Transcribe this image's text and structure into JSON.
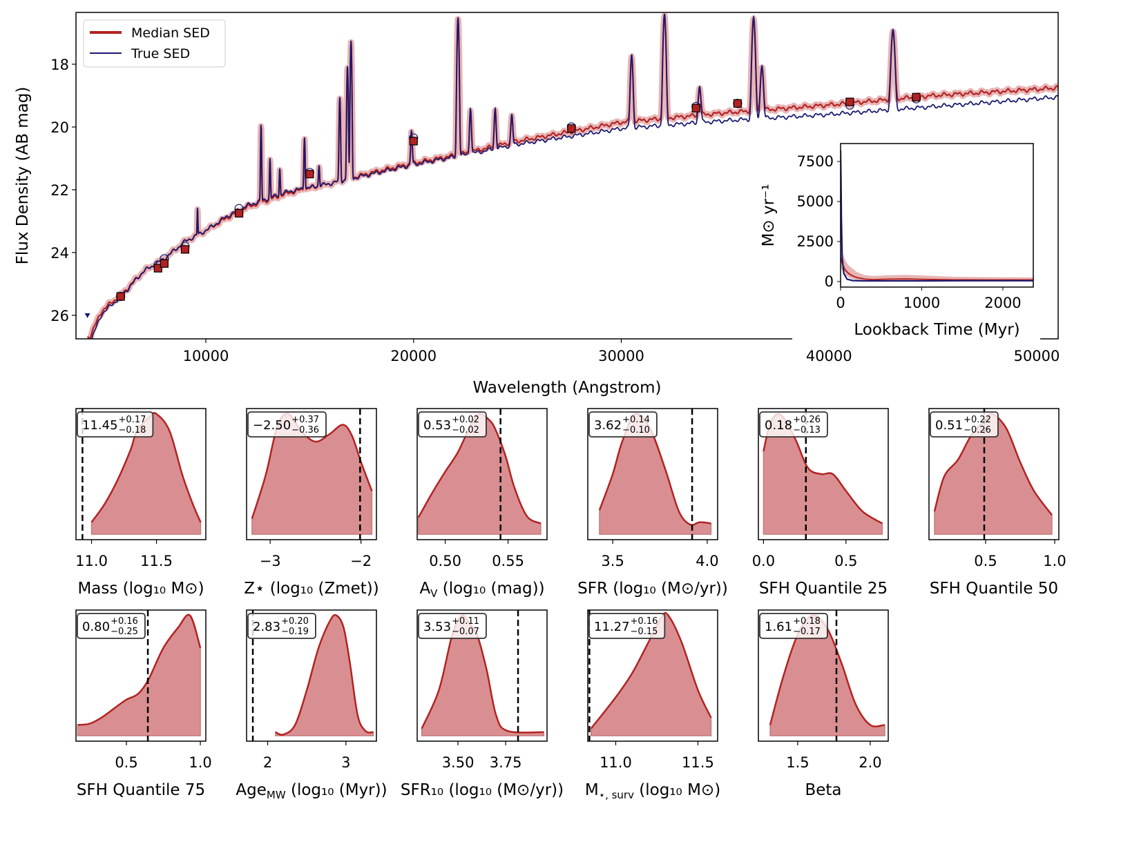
{
  "colors": {
    "median": "#b22222",
    "band": "#cd5c5c",
    "fill": "#d98f91",
    "true": "#191970",
    "truth_line": "#000000"
  },
  "chart_data": [
    {
      "type": "line",
      "xlabel": "Wavelength (Angstrom)",
      "ylabel": "Flux Density (AB mag)",
      "xlim": [
        3749,
        51031
      ],
      "ylim": [
        26.75,
        16.35
      ],
      "y_inverted": true,
      "xticks": [
        10000,
        20000,
        30000,
        40000,
        50000
      ],
      "xtick_labels": [
        "10000",
        "20000",
        "30000",
        "40000",
        "50000"
      ],
      "yticks": [
        18,
        20,
        22,
        24,
        26
      ],
      "ytick_labels": [
        "18",
        "20",
        "22",
        "24",
        "26"
      ],
      "legend": {
        "position": "upper-left",
        "entries": [
          "Median SED",
          "True SED"
        ]
      },
      "series": [
        {
          "name": "Median SED",
          "continuum": [
            [
              4400,
              26.7
            ],
            [
              5000,
              25.85
            ],
            [
              6000,
              25.3
            ],
            [
              7000,
              24.6
            ],
            [
              8000,
              24.2
            ],
            [
              9000,
              23.65
            ],
            [
              10000,
              23.3
            ],
            [
              11000,
              22.9
            ],
            [
              12000,
              22.55
            ],
            [
              14000,
              22.1
            ],
            [
              16000,
              21.8
            ],
            [
              18000,
              21.45
            ],
            [
              20000,
              21.15
            ],
            [
              22000,
              20.9
            ],
            [
              25000,
              20.45
            ],
            [
              28000,
              20.1
            ],
            [
              30000,
              19.85
            ],
            [
              35000,
              19.55
            ],
            [
              40000,
              19.3
            ],
            [
              45000,
              19.0
            ],
            [
              50000,
              18.8
            ],
            [
              51031,
              18.75
            ]
          ]
        },
        {
          "name": "True SED",
          "continuum": [
            [
              4400,
              26.9
            ],
            [
              5000,
              25.95
            ],
            [
              6000,
              25.35
            ],
            [
              7000,
              24.6
            ],
            [
              8000,
              24.2
            ],
            [
              9000,
              23.65
            ],
            [
              10000,
              23.3
            ],
            [
              11000,
              22.85
            ],
            [
              12000,
              22.5
            ],
            [
              14000,
              22.05
            ],
            [
              16000,
              21.8
            ],
            [
              18000,
              21.5
            ],
            [
              20000,
              21.2
            ],
            [
              22000,
              20.95
            ],
            [
              25000,
              20.55
            ],
            [
              28000,
              20.25
            ],
            [
              30000,
              20.05
            ],
            [
              35000,
              19.8
            ],
            [
              40000,
              19.6
            ],
            [
              45000,
              19.35
            ],
            [
              50000,
              19.1
            ],
            [
              51031,
              19.05
            ]
          ]
        }
      ],
      "emission_lines": [
        [
          9600,
          22.55
        ],
        [
          12660,
          19.9
        ],
        [
          13090,
          21.0
        ],
        [
          13560,
          21.3
        ],
        [
          14750,
          20.3
        ],
        [
          15450,
          21.2
        ],
        [
          16450,
          19.05
        ],
        [
          16820,
          18.05
        ],
        [
          16990,
          17.25
        ],
        [
          19900,
          20.1
        ],
        [
          22140,
          16.5
        ],
        [
          22740,
          19.4
        ],
        [
          23930,
          19.4
        ],
        [
          24730,
          19.6
        ],
        [
          30500,
          17.7
        ],
        [
          32080,
          16.4
        ],
        [
          33770,
          18.7
        ],
        [
          36370,
          16.5
        ],
        [
          36770,
          18.05
        ],
        [
          43080,
          16.9
        ]
      ],
      "model_photometry": [
        [
          5900,
          25.4
        ],
        [
          7700,
          24.5
        ],
        [
          8000,
          24.35
        ],
        [
          9000,
          23.9
        ],
        [
          11600,
          22.75
        ],
        [
          15000,
          21.5
        ],
        [
          20000,
          20.45
        ],
        [
          27600,
          20.05
        ],
        [
          33600,
          19.4
        ],
        [
          35600,
          19.25
        ],
        [
          41000,
          19.2
        ],
        [
          44200,
          19.05
        ]
      ],
      "observed_photometry": [
        [
          5900,
          25.4
        ],
        [
          7700,
          24.4
        ],
        [
          8000,
          24.2
        ],
        [
          9000,
          23.8
        ],
        [
          11600,
          22.6
        ],
        [
          15000,
          21.45
        ],
        [
          20000,
          20.35
        ],
        [
          27600,
          20.0
        ],
        [
          33600,
          19.35
        ],
        [
          35600,
          19.25
        ],
        [
          41000,
          19.3
        ],
        [
          44200,
          19.1
        ]
      ],
      "upper_limits": [
        [
          4300,
          26.0
        ]
      ]
    },
    {
      "type": "line",
      "xlabel": "Lookback Time (Myr)",
      "ylabel": "M⊙ yr⁻¹",
      "xlim": [
        0,
        2375
      ],
      "ylim": [
        -345,
        8620
      ],
      "xticks": [
        0,
        1000,
        2000
      ],
      "xtick_labels": [
        "0",
        "1000",
        "2000"
      ],
      "yticks": [
        0,
        2500,
        5000,
        7500
      ],
      "ytick_labels": [
        "0",
        "2500",
        "5000",
        "7500"
      ],
      "series": [
        {
          "name": "Median",
          "x": [
            0,
            10,
            30,
            60,
            100,
            150,
            200,
            300,
            400,
            600,
            800,
            1000,
            1400,
            1800,
            2375
          ],
          "y": [
            1500,
            1300,
            1000,
            700,
            500,
            350,
            250,
            150,
            120,
            150,
            160,
            140,
            110,
            100,
            100
          ],
          "band_low": [
            900,
            800,
            600,
            400,
            250,
            150,
            100,
            50,
            30,
            40,
            40,
            30,
            20,
            20,
            20
          ],
          "band_high": [
            2200,
            2000,
            1700,
            1300,
            1000,
            800,
            600,
            400,
            350,
            400,
            420,
            380,
            300,
            280,
            260
          ]
        },
        {
          "name": "True",
          "x": [
            0,
            5,
            10,
            20,
            40,
            80,
            150,
            300,
            600,
            1000,
            1500,
            2000,
            2375
          ],
          "y": [
            8200,
            6500,
            4000,
            1500,
            500,
            150,
            60,
            40,
            40,
            40,
            50,
            50,
            50
          ]
        }
      ]
    },
    {
      "type": "area",
      "label": "Mass (log₁₀ M⊙)",
      "label_sub": "",
      "label_tail": "",
      "value": "11.45",
      "plus": "+0.17",
      "minus": "−0.18",
      "xlim": [
        10.88,
        11.88
      ],
      "xticks": [
        11.0,
        11.5
      ],
      "xtick_labels": [
        "11.0",
        "11.5"
      ],
      "truth": 10.93,
      "kde": [
        [
          11.0,
          0.1
        ],
        [
          11.1,
          0.25
        ],
        [
          11.2,
          0.45
        ],
        [
          11.3,
          0.7
        ],
        [
          11.35,
          0.86
        ],
        [
          11.45,
          0.98
        ],
        [
          11.5,
          1.0
        ],
        [
          11.6,
          0.86
        ],
        [
          11.7,
          0.49
        ],
        [
          11.78,
          0.25
        ],
        [
          11.84,
          0.1
        ]
      ]
    },
    {
      "type": "area",
      "label": "Z⋆ (log₁₀ (Zmet))",
      "label_sub": "",
      "label_tail": "",
      "value": "−2.50",
      "plus": "+0.37",
      "minus": "−0.36",
      "xlim": [
        -3.26,
        -1.83
      ],
      "xticks": [
        -3,
        -2
      ],
      "xtick_labels": [
        "−3",
        "−2"
      ],
      "truth": -2.01,
      "kde": [
        [
          -3.2,
          0.13
        ],
        [
          -3.05,
          0.49
        ],
        [
          -2.92,
          0.9
        ],
        [
          -2.8,
          1.0
        ],
        [
          -2.65,
          0.85
        ],
        [
          -2.5,
          0.77
        ],
        [
          -2.35,
          0.83
        ],
        [
          -2.2,
          0.91
        ],
        [
          -2.1,
          0.82
        ],
        [
          -2.0,
          0.6
        ],
        [
          -1.88,
          0.36
        ]
      ]
    },
    {
      "type": "area",
      "label": "A",
      "label_sub": "V",
      "label_tail": " (log₁₀ (mag))",
      "value": "0.53",
      "plus": "+0.02",
      "minus": "−0.02",
      "xlim": [
        0.4777,
        0.581
      ],
      "xticks": [
        0.5,
        0.55
      ],
      "xtick_labels": [
        "0.50",
        "0.55"
      ],
      "truth": 0.544,
      "kde": [
        [
          0.4787,
          0.14
        ],
        [
          0.49,
          0.35
        ],
        [
          0.5,
          0.52
        ],
        [
          0.51,
          0.68
        ],
        [
          0.52,
          0.9
        ],
        [
          0.527,
          1.0
        ],
        [
          0.535,
          0.95
        ],
        [
          0.54,
          0.87
        ],
        [
          0.548,
          0.65
        ],
        [
          0.555,
          0.39
        ],
        [
          0.565,
          0.15
        ],
        [
          0.576,
          0.09
        ]
      ]
    },
    {
      "type": "area",
      "label": "SFR (log₁₀ (M⊙/yr))",
      "label_sub": "",
      "label_tail": "",
      "value": "3.62",
      "plus": "+0.14",
      "minus": "−0.10",
      "xlim": [
        3.368,
        4.055
      ],
      "xticks": [
        3.5,
        4.0
      ],
      "xtick_labels": [
        "3.5",
        "4.0"
      ],
      "truth": 3.92,
      "kde": [
        [
          3.43,
          0.2
        ],
        [
          3.5,
          0.5
        ],
        [
          3.55,
          0.77
        ],
        [
          3.62,
          1.0
        ],
        [
          3.7,
          0.87
        ],
        [
          3.78,
          0.53
        ],
        [
          3.85,
          0.19
        ],
        [
          3.91,
          0.08
        ],
        [
          3.96,
          0.1
        ],
        [
          4.02,
          0.09
        ]
      ]
    },
    {
      "type": "area",
      "label": "SFH Quantile 25",
      "label_sub": "",
      "label_tail": "",
      "value": "0.18",
      "plus": "+0.26",
      "minus": "−0.13",
      "xlim": [
        -0.031,
        0.756
      ],
      "xticks": [
        0.0,
        0.5
      ],
      "xtick_labels": [
        "0.0",
        "0.5"
      ],
      "truth": 0.257,
      "kde": [
        [
          0.0,
          0.69
        ],
        [
          0.04,
          0.92
        ],
        [
          0.09,
          1.0
        ],
        [
          0.14,
          0.93
        ],
        [
          0.2,
          0.77
        ],
        [
          0.27,
          0.55
        ],
        [
          0.35,
          0.5
        ],
        [
          0.42,
          0.5
        ],
        [
          0.5,
          0.36
        ],
        [
          0.6,
          0.19
        ],
        [
          0.72,
          0.09
        ]
      ]
    },
    {
      "type": "area",
      "label": "SFH Quantile 50",
      "label_sub": "",
      "label_tail": "",
      "value": "0.51",
      "plus": "+0.22",
      "minus": "−0.26",
      "xlim": [
        0.09,
        1.03
      ],
      "xticks": [
        0.5,
        1.0
      ],
      "xtick_labels": [
        "0.5",
        "1.0"
      ],
      "truth": 0.49,
      "kde": [
        [
          0.13,
          0.19
        ],
        [
          0.2,
          0.48
        ],
        [
          0.3,
          0.62
        ],
        [
          0.4,
          0.83
        ],
        [
          0.5,
          0.95
        ],
        [
          0.55,
          1.0
        ],
        [
          0.65,
          0.88
        ],
        [
          0.75,
          0.6
        ],
        [
          0.85,
          0.36
        ],
        [
          0.98,
          0.16
        ]
      ]
    },
    {
      "type": "area",
      "label": "SFH Quantile 75",
      "label_sub": "",
      "label_tail": "",
      "value": "0.80",
      "plus": "+0.16",
      "minus": "−0.25",
      "xlim": [
        0.159,
        1.037
      ],
      "xticks": [
        0.5,
        1.0
      ],
      "xtick_labels": [
        "0.5",
        "1.0"
      ],
      "truth": 0.645,
      "kde": [
        [
          0.17,
          0.09
        ],
        [
          0.25,
          0.1
        ],
        [
          0.33,
          0.15
        ],
        [
          0.42,
          0.23
        ],
        [
          0.5,
          0.3
        ],
        [
          0.58,
          0.35
        ],
        [
          0.65,
          0.47
        ],
        [
          0.75,
          0.73
        ],
        [
          0.85,
          0.9
        ],
        [
          0.93,
          1.0
        ],
        [
          1.0,
          0.73
        ]
      ]
    },
    {
      "type": "area",
      "label": "Age",
      "label_sub": "MW",
      "label_tail": " (log₁₀ (Myr))",
      "value": "2.83",
      "plus": "+0.20",
      "minus": "−0.19",
      "xlim": [
        1.73,
        3.39
      ],
      "xticks": [
        2,
        3
      ],
      "xtick_labels": [
        "2",
        "3"
      ],
      "truth": 1.81,
      "kde": [
        [
          2.1,
          0.03
        ],
        [
          2.2,
          0.01
        ],
        [
          2.35,
          0.09
        ],
        [
          2.5,
          0.38
        ],
        [
          2.65,
          0.73
        ],
        [
          2.8,
          0.96
        ],
        [
          2.88,
          1.0
        ],
        [
          2.97,
          0.9
        ],
        [
          3.05,
          0.61
        ],
        [
          3.15,
          0.17
        ],
        [
          3.25,
          0.04
        ],
        [
          3.35,
          0.03
        ]
      ]
    },
    {
      "type": "area",
      "label": "SFR₁₀ (log₁₀ (M⊙/yr))",
      "label_sub": "",
      "label_tail": "",
      "value": "3.53",
      "plus": "+0.11",
      "minus": "−0.07",
      "xlim": [
        3.286,
        3.967
      ],
      "xticks": [
        3.5,
        3.75
      ],
      "xtick_labels": [
        "3.50",
        "3.75"
      ],
      "truth": 3.815,
      "kde": [
        [
          3.31,
          0.06
        ],
        [
          3.4,
          0.38
        ],
        [
          3.47,
          0.84
        ],
        [
          3.52,
          1.0
        ],
        [
          3.56,
          0.93
        ],
        [
          3.6,
          0.84
        ],
        [
          3.65,
          0.55
        ],
        [
          3.7,
          0.17
        ],
        [
          3.76,
          0.04
        ],
        [
          3.95,
          0.03
        ]
      ]
    },
    {
      "type": "area",
      "label": "M",
      "label_sub": "⋆, surv",
      "label_tail": " (log₁₀ M⊙)",
      "value": "11.27",
      "plus": "+0.16",
      "minus": "−0.15",
      "xlim": [
        10.83,
        11.62
      ],
      "xticks": [
        11.0,
        11.5
      ],
      "xtick_labels": [
        "11.0",
        "11.5"
      ],
      "truth": 10.84,
      "kde": [
        [
          10.85,
          0.06
        ],
        [
          11.0,
          0.32
        ],
        [
          11.1,
          0.52
        ],
        [
          11.2,
          0.78
        ],
        [
          11.28,
          0.99
        ],
        [
          11.32,
          1.0
        ],
        [
          11.4,
          0.78
        ],
        [
          11.5,
          0.38
        ],
        [
          11.58,
          0.15
        ]
      ]
    },
    {
      "type": "area",
      "label": "Beta",
      "label_sub": "",
      "label_tail": "",
      "value": "1.61",
      "plus": "+0.18",
      "minus": "−0.17",
      "xlim": [
        1.229,
        2.124
      ],
      "xticks": [
        1.5,
        2.0
      ],
      "xtick_labels": [
        "1.5",
        "2.0"
      ],
      "truth": 1.767,
      "kde": [
        [
          1.31,
          0.09
        ],
        [
          1.4,
          0.49
        ],
        [
          1.5,
          0.84
        ],
        [
          1.6,
          1.0
        ],
        [
          1.7,
          0.9
        ],
        [
          1.8,
          0.61
        ],
        [
          1.9,
          0.26
        ],
        [
          2.0,
          0.09
        ],
        [
          2.1,
          0.09
        ]
      ]
    }
  ]
}
